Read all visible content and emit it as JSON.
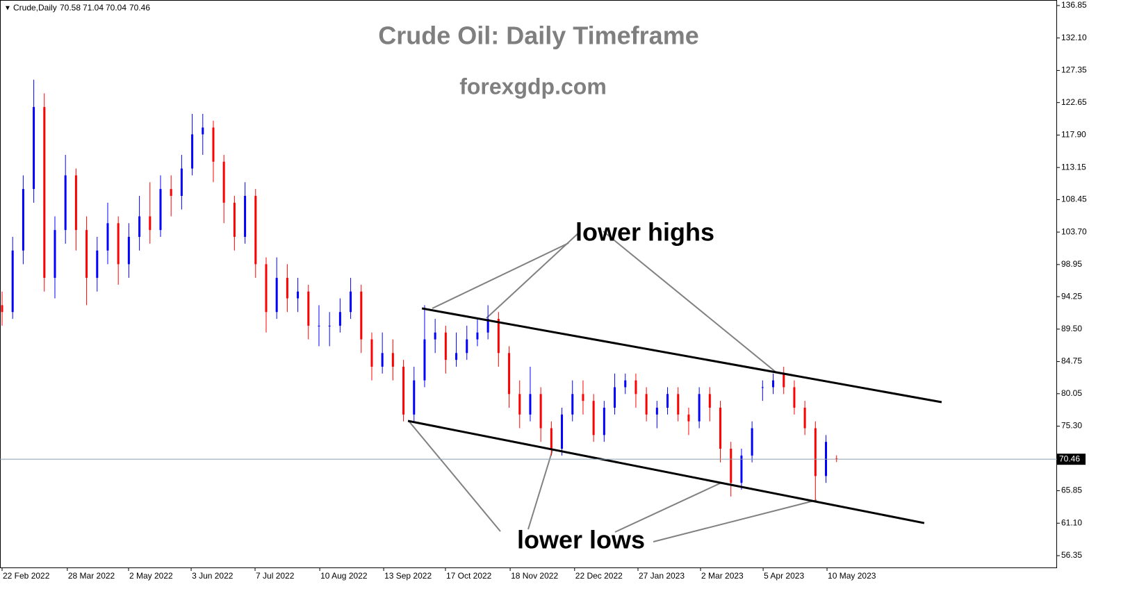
{
  "chart_data": {
    "type": "candlestick",
    "symbol": "Crude,Daily",
    "title": "Crude Oil: Daily Timeframe",
    "subtitle": "forexgdp.com",
    "annotations": [
      "lower highs",
      "lower lows"
    ],
    "up_color": "#0000ff",
    "down_color": "#ff0000",
    "x": [
      0,
      4,
      8,
      12,
      16,
      20,
      24,
      28,
      32,
      36,
      40,
      44,
      48,
      52,
      56,
      60,
      64,
      68,
      72,
      76,
      80,
      84,
      88,
      92,
      96,
      100,
      104,
      108,
      112,
      116,
      120,
      124,
      128,
      132,
      136,
      140,
      144,
      148,
      152,
      156,
      160,
      164,
      168,
      172,
      176,
      180,
      184,
      188,
      192,
      196,
      200,
      204,
      208,
      212,
      216,
      220,
      224,
      228,
      232,
      236,
      240,
      244,
      248,
      252,
      256,
      260,
      264,
      268,
      272,
      276,
      280,
      284,
      288,
      292,
      296,
      300,
      304,
      308,
      312,
      316
    ],
    "open": [
      93,
      92,
      101,
      110,
      122,
      97,
      104,
      112,
      104,
      97,
      101,
      105,
      99,
      103,
      106,
      104,
      110,
      109,
      113,
      118,
      119,
      114,
      108,
      103,
      109,
      99,
      92,
      97,
      94,
      95,
      90,
      90,
      90,
      92,
      95,
      88,
      84,
      86,
      84,
      77,
      82,
      88,
      89,
      85,
      86,
      88,
      89,
      91,
      86,
      80,
      77,
      80,
      75,
      72,
      77,
      80,
      79,
      74,
      78,
      81,
      82,
      80,
      77,
      78,
      80,
      77,
      76,
      80,
      78,
      72,
      67,
      71,
      81,
      81,
      83,
      81,
      78,
      75,
      68,
      70.58
    ],
    "high": [
      95,
      103,
      112,
      126,
      124,
      106,
      115,
      113,
      106,
      103,
      108,
      106,
      105,
      109,
      111,
      112,
      112,
      115,
      121,
      121,
      120,
      115,
      109,
      111,
      110,
      100,
      100,
      99,
      97,
      96,
      93,
      92,
      94,
      97,
      96,
      89,
      89,
      88,
      85,
      84,
      93,
      91,
      90,
      89,
      90,
      91,
      93,
      92,
      87,
      82,
      84,
      81,
      76,
      78,
      82,
      82,
      80,
      79,
      83,
      83,
      83,
      81,
      79,
      81,
      81,
      78,
      81,
      81,
      79,
      73,
      72,
      76,
      82,
      83,
      84,
      82,
      79,
      76,
      74,
      71.04
    ],
    "low": [
      90,
      91,
      99,
      108,
      95,
      94,
      102,
      101,
      93,
      95,
      99,
      96,
      97,
      101,
      102,
      103,
      106,
      107,
      112,
      115,
      111,
      105,
      101,
      102,
      97,
      89,
      91,
      92,
      92,
      88,
      87,
      87,
      89,
      91,
      86,
      82,
      83,
      82,
      76,
      76,
      81,
      86,
      83,
      84,
      85,
      87,
      88,
      84,
      78,
      75,
      76,
      73,
      71,
      71,
      76,
      77,
      73,
      73,
      77,
      80,
      78,
      76,
      75,
      77,
      76,
      74,
      75,
      76,
      70,
      65,
      66,
      70,
      79,
      80,
      80,
      77,
      74,
      64.5,
      67,
      70.04
    ],
    "close": [
      92,
      101,
      110,
      122,
      97,
      104,
      112,
      104,
      97,
      101,
      105,
      99,
      103,
      106,
      104,
      110,
      109,
      113,
      118,
      119,
      114,
      108,
      103,
      109,
      99,
      92,
      97,
      94,
      95,
      90,
      90,
      90,
      92,
      95,
      88,
      84,
      86,
      84,
      77,
      82,
      88,
      89,
      85,
      86,
      88,
      89,
      91,
      86,
      80,
      77,
      80,
      75,
      72,
      77,
      80,
      79,
      74,
      78,
      81,
      82,
      80,
      77,
      78,
      80,
      77,
      76,
      80,
      78,
      72,
      67,
      71,
      75,
      81,
      82,
      81,
      78,
      75,
      68,
      73,
      70.46
    ],
    "trendlines": [
      {
        "x": [
          159,
          355.8
        ],
        "y": [
          92.53,
          78.81
        ]
      },
      {
        "x": [
          153.7,
          349.2
        ],
        "y": [
          76.07,
          61.12
        ]
      }
    ],
    "xlim": [
      -0.79,
      399.5
    ],
    "ylim": [
      54.52,
      137.66
    ],
    "xticks": [
      {
        "value": 0,
        "label": "22 Feb 2022"
      },
      {
        "value": 24.7,
        "label": "28 Mar 2022"
      },
      {
        "value": 47.9,
        "label": "2 May 2022"
      },
      {
        "value": 71.6,
        "label": "3 Jun 2022"
      },
      {
        "value": 95.8,
        "label": "7 Jul 2022"
      },
      {
        "value": 120.3,
        "label": "10 Aug 2022"
      },
      {
        "value": 144.5,
        "label": "13 Sep 2022"
      },
      {
        "value": 167.9,
        "label": "17 Oct 2022"
      },
      {
        "value": 192.4,
        "label": "18 Nov 2022"
      },
      {
        "value": 216.8,
        "label": "22 Dec 2022"
      },
      {
        "value": 240.8,
        "label": "27 Jan 2023"
      },
      {
        "value": 264.5,
        "label": "2 Mar 2023"
      },
      {
        "value": 288.2,
        "label": "5 Apr 2023"
      },
      {
        "value": 312.4,
        "label": "10 May 2023"
      }
    ],
    "yticks": [
      {
        "value": 136.85,
        "label": "136.85"
      },
      {
        "value": 132.1,
        "label": "132.10"
      },
      {
        "value": 127.35,
        "label": "127.35"
      },
      {
        "value": 122.65,
        "label": "122.65"
      },
      {
        "value": 117.9,
        "label": "117.90"
      },
      {
        "value": 113.15,
        "label": "113.15"
      },
      {
        "value": 108.45,
        "label": "108.45"
      },
      {
        "value": 103.7,
        "label": "103.70"
      },
      {
        "value": 98.95,
        "label": "98.95"
      },
      {
        "value": 94.25,
        "label": "94.25"
      },
      {
        "value": 89.5,
        "label": "89.50"
      },
      {
        "value": 84.75,
        "label": "84.75"
      },
      {
        "value": 80.05,
        "label": "80.05"
      },
      {
        "value": 75.3,
        "label": "75.30"
      },
      {
        "value": 65.85,
        "label": "65.85"
      },
      {
        "value": 61.1,
        "label": "61.10"
      },
      {
        "value": 56.35,
        "label": "56.35"
      }
    ]
  }
}
